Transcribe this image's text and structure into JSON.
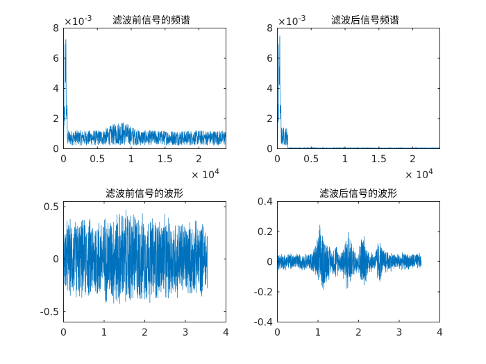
{
  "colors": {
    "series": "#0072BD",
    "axis": "#262626",
    "background": "#ffffff"
  },
  "chart_data": [
    {
      "type": "line",
      "title": "滤波前信号的频谱",
      "xlim": [
        0,
        24000
      ],
      "ylim": [
        0,
        0.008
      ],
      "xticks": [
        0,
        5000,
        10000,
        15000,
        20000
      ],
      "xtick_labels": [
        "0",
        "0.5",
        "1",
        "1.5",
        "2"
      ],
      "yticks": [
        0,
        0.002,
        0.004,
        0.006,
        0.008
      ],
      "ytick_labels": [
        "0",
        "2",
        "4",
        "6",
        "8"
      ],
      "x_exponent": {
        "base": "× 10",
        "power": "4"
      },
      "y_exponent": {
        "base": "×10",
        "power": "-3"
      },
      "features": [
        {
          "x": 150,
          "y": 0.0029
        },
        {
          "x": 300,
          "y": 0.0078
        },
        {
          "x": 400,
          "y": 0.0072
        },
        {
          "x": 600,
          "y": 0.0016
        },
        {
          "x": 8500,
          "y": 0.0019
        },
        {
          "x": 24000,
          "y": 0.0012
        }
      ]
    },
    {
      "type": "line",
      "title": "滤波后信号频谱",
      "xlim": [
        0,
        24000
      ],
      "ylim": [
        0,
        0.008
      ],
      "xticks": [
        0,
        5000,
        10000,
        15000,
        20000
      ],
      "xtick_labels": [
        "0",
        "0.5",
        "1",
        "1.5",
        "2"
      ],
      "yticks": [
        0,
        0.002,
        0.004,
        0.006,
        0.008
      ],
      "ytick_labels": [
        "0",
        "2",
        "4",
        "6",
        "8"
      ],
      "x_exponent": {
        "base": "× 10",
        "power": "4"
      },
      "y_exponent": {
        "base": "×10",
        "power": "-3"
      },
      "features": [
        {
          "x": 150,
          "y": 0.0029
        },
        {
          "x": 300,
          "y": 0.0078
        },
        {
          "x": 400,
          "y": 0.0072
        },
        {
          "x": 1500,
          "y": 0.0013
        },
        {
          "x": 1600,
          "y": 0.0
        },
        {
          "x": 24000,
          "y": 0.0
        }
      ]
    },
    {
      "type": "line",
      "title": "滤波前信号的波形",
      "xlim": [
        0,
        4
      ],
      "ylim": [
        -0.6,
        0.55
      ],
      "xticks": [
        0,
        1,
        2,
        3,
        4
      ],
      "xtick_labels": [
        "0",
        "1",
        "2",
        "3",
        "4"
      ],
      "yticks": [
        -0.5,
        0,
        0.5
      ],
      "ytick_labels": [
        "-0.5",
        "0",
        "0.5"
      ],
      "data_range": [
        0,
        3.55
      ],
      "envelope": [
        [
          0,
          0.4
        ],
        [
          0.5,
          0.42
        ],
        [
          1.0,
          0.45
        ],
        [
          1.3,
          0.5
        ],
        [
          1.7,
          0.52
        ],
        [
          2.0,
          0.46
        ],
        [
          2.5,
          0.44
        ],
        [
          3.0,
          0.4
        ],
        [
          3.55,
          0.38
        ]
      ]
    },
    {
      "type": "line",
      "title": "滤波后信号的波形",
      "xlim": [
        0,
        4
      ],
      "ylim": [
        -0.4,
        0.4
      ],
      "xticks": [
        0,
        1,
        2,
        3,
        4
      ],
      "xtick_labels": [
        "0",
        "1",
        "2",
        "3",
        "4"
      ],
      "yticks": [
        -0.4,
        -0.2,
        0,
        0.2,
        0.4
      ],
      "ytick_labels": [
        "-0.4",
        "-0.2",
        "0",
        "0.2",
        "0.4"
      ],
      "data_range": [
        0,
        3.55
      ],
      "envelope": [
        [
          0,
          0.06
        ],
        [
          0.8,
          0.06
        ],
        [
          0.95,
          0.12
        ],
        [
          1.05,
          0.26
        ],
        [
          1.2,
          0.18
        ],
        [
          1.35,
          0.08
        ],
        [
          1.45,
          0.14
        ],
        [
          1.55,
          0.06
        ],
        [
          1.65,
          0.16
        ],
        [
          1.75,
          0.24
        ],
        [
          1.85,
          0.12
        ],
        [
          2.0,
          0.08
        ],
        [
          2.1,
          0.22
        ],
        [
          2.25,
          0.1
        ],
        [
          2.4,
          0.06
        ],
        [
          2.5,
          0.18
        ],
        [
          2.6,
          0.1
        ],
        [
          2.75,
          0.08
        ],
        [
          2.9,
          0.06
        ],
        [
          3.55,
          0.06
        ]
      ]
    }
  ]
}
